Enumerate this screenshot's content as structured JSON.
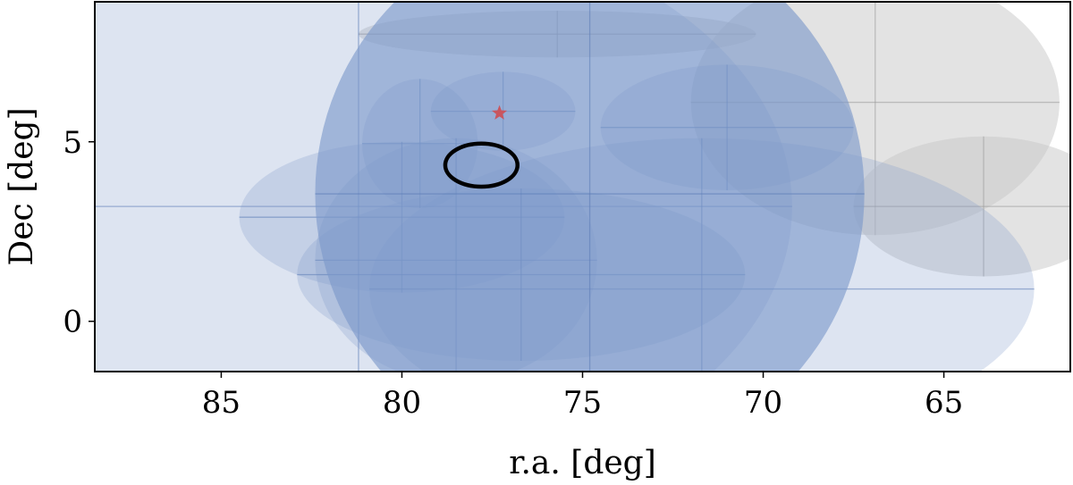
{
  "chart_data": {
    "type": "scatter",
    "xlabel": "r.a. [deg]",
    "ylabel": "Dec [deg]",
    "xlim": [
      88.5,
      61.5
    ],
    "ylim": [
      -1.4,
      8.9
    ],
    "x_ticks": [
      85,
      80,
      75,
      70,
      65
    ],
    "x_tick_labels": [
      "85",
      "80",
      "75",
      "70",
      "65"
    ],
    "y_ticks": [
      0,
      5
    ],
    "y_tick_labels": [
      "0",
      "5"
    ],
    "grid": false,
    "legend": "none",
    "colors": {
      "gray_ellipse": "#c8c8c8",
      "blue_ellipse": "#7b97c9",
      "star": "#c9565f",
      "contour": "#000000"
    },
    "gray_ellipses": [
      {
        "ra": 75.7,
        "dec": 8.0,
        "w_ra": 5.5,
        "h_dec": 0.65
      },
      {
        "ra": 66.9,
        "dec": 6.1,
        "w_ra": 5.1,
        "h_dec": 3.7
      },
      {
        "ra": 63.9,
        "dec": 3.2,
        "w_ra": 3.6,
        "h_dec": 1.95
      }
    ],
    "blue_ellipses": [
      {
        "ra": 81.2,
        "dec": 3.2,
        "w_ra": 12.0,
        "h_dec": 8.0,
        "opacity": 0.26
      },
      {
        "ra": 77.2,
        "dec": 5.85,
        "w_ra": 2.0,
        "h_dec": 1.1,
        "opacity": 0.26
      },
      {
        "ra": 79.5,
        "dec": 4.95,
        "w_ra": 1.6,
        "h_dec": 1.8,
        "opacity": 0.26
      },
      {
        "ra": 71.0,
        "dec": 5.4,
        "w_ra": 3.5,
        "h_dec": 1.75,
        "opacity": 0.26
      },
      {
        "ra": 80.0,
        "dec": 2.9,
        "w_ra": 4.5,
        "h_dec": 2.1,
        "opacity": 0.26
      },
      {
        "ra": 78.5,
        "dec": 1.7,
        "w_ra": 3.9,
        "h_dec": 3.4,
        "opacity": 0.26
      },
      {
        "ra": 71.7,
        "dec": 0.9,
        "w_ra": 9.2,
        "h_dec": 4.2,
        "opacity": 0.26
      },
      {
        "ra": 76.7,
        "dec": 1.3,
        "w_ra": 6.2,
        "h_dec": 2.4,
        "opacity": 0.26
      },
      {
        "ra": 74.8,
        "dec": 3.55,
        "w_ra": 7.6,
        "h_dec": 7.6,
        "opacity": 0.62
      }
    ],
    "star": {
      "ra": 77.3,
      "dec": 5.8
    },
    "contour": {
      "ra": 77.8,
      "dec": 4.35,
      "w_ra": 1.0,
      "h_dec": 0.6
    }
  }
}
